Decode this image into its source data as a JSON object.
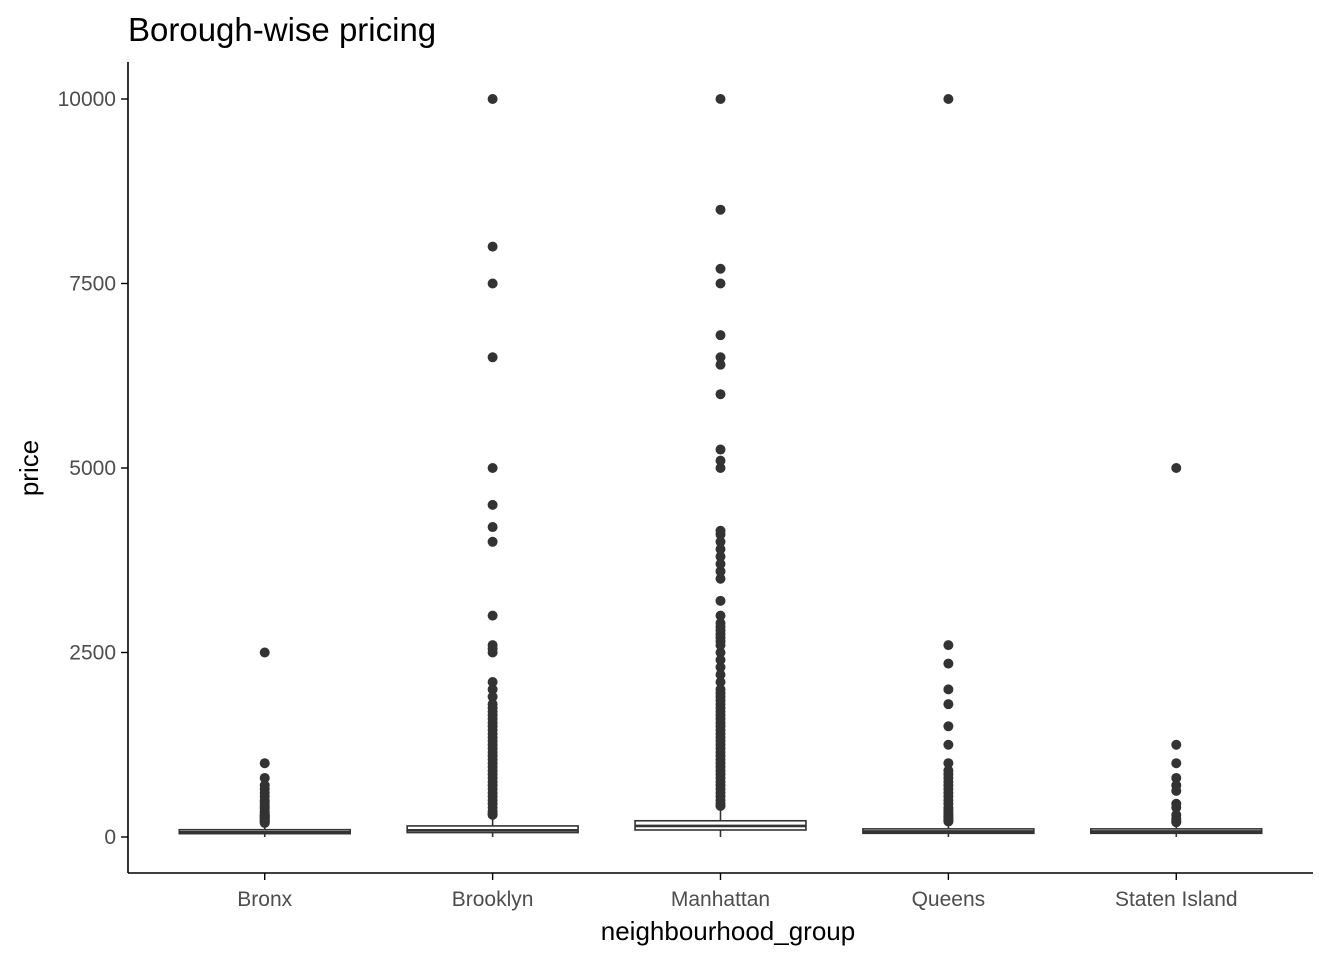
{
  "chart_data": {
    "type": "boxplot",
    "title": "Borough-wise pricing",
    "xlabel": "neighbourhood_group",
    "ylabel": "price",
    "categories": [
      "Bronx",
      "Brooklyn",
      "Manhattan",
      "Queens",
      "Staten Island"
    ],
    "ylim": [
      -500,
      10500
    ],
    "yticks": [
      0,
      2500,
      5000,
      7500,
      10000
    ],
    "grid": false,
    "legend": "none",
    "colors": {
      "box_fill": "#ffffff",
      "box_stroke": "#333333",
      "outlier": "#333333",
      "axis": "#000000",
      "tick_label": "#4d4d4d"
    },
    "boxes": [
      {
        "category": "Bronx",
        "q1": 45,
        "median": 65,
        "q3": 99,
        "whisker_low": 0,
        "whisker_high": 180,
        "outliers": [
          2500,
          1000,
          800,
          700,
          650,
          600,
          550,
          500,
          480,
          450,
          420,
          400,
          380,
          350,
          330,
          310,
          300,
          290,
          280,
          270,
          260,
          250,
          240,
          230,
          220,
          210,
          200,
          190
        ]
      },
      {
        "category": "Brooklyn",
        "q1": 60,
        "median": 90,
        "q3": 150,
        "whisker_low": 0,
        "whisker_high": 285,
        "outliers": [
          10000,
          8000,
          7500,
          6500,
          5000,
          4500,
          4200,
          4000,
          3000,
          2600,
          2550,
          2500,
          2100,
          2000,
          1900,
          1800,
          1750,
          1700,
          1650,
          1600,
          1550,
          1500,
          1450,
          1400,
          1350,
          1300,
          1250,
          1200,
          1150,
          1100,
          1050,
          1000,
          950,
          900,
          850,
          800,
          750,
          700,
          650,
          600,
          550,
          500,
          450,
          400,
          350,
          320,
          300
        ]
      },
      {
        "category": "Manhattan",
        "q1": 95,
        "median": 150,
        "q3": 220,
        "whisker_low": 0,
        "whisker_high": 410,
        "outliers": [
          10000,
          8500,
          7700,
          7500,
          6800,
          6500,
          6400,
          6000,
          5250,
          5100,
          5000,
          4150,
          4100,
          4000,
          3900,
          3800,
          3700,
          3600,
          3500,
          3200,
          3000,
          2900,
          2850,
          2800,
          2750,
          2700,
          2650,
          2600,
          2500,
          2400,
          2300,
          2200,
          2100,
          2000,
          1950,
          1900,
          1850,
          1800,
          1750,
          1700,
          1650,
          1600,
          1550,
          1500,
          1450,
          1400,
          1350,
          1300,
          1250,
          1200,
          1150,
          1100,
          1050,
          1000,
          950,
          900,
          850,
          800,
          750,
          700,
          650,
          600,
          550,
          500,
          450,
          420
        ]
      },
      {
        "category": "Queens",
        "q1": 50,
        "median": 75,
        "q3": 110,
        "whisker_low": 0,
        "whisker_high": 200,
        "outliers": [
          10000,
          2600,
          2350,
          2000,
          1800,
          1500,
          1250,
          1000,
          900,
          850,
          800,
          750,
          700,
          650,
          600,
          550,
          500,
          450,
          400,
          380,
          350,
          320,
          300,
          280,
          260,
          240,
          220,
          210
        ]
      },
      {
        "category": "Staten Island",
        "q1": 50,
        "median": 75,
        "q3": 110,
        "whisker_low": 0,
        "whisker_high": 190,
        "outliers": [
          5000,
          1250,
          1000,
          800,
          700,
          625,
          450,
          400,
          300,
          250,
          230,
          210,
          200
        ]
      }
    ]
  }
}
